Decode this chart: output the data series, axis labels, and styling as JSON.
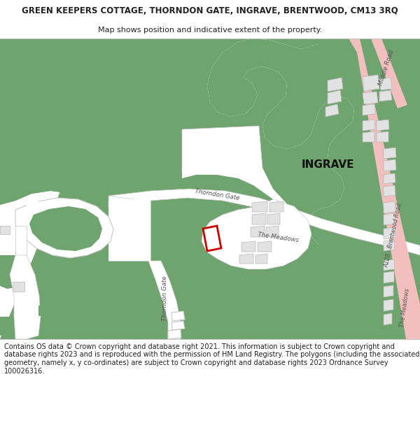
{
  "title_line1": "GREEN KEEPERS COTTAGE, THORNDON GATE, INGRAVE, BRENTWOOD, CM13 3RQ",
  "title_line2": "Map shows position and indicative extent of the property.",
  "footer": "Contains OS data © Crown copyright and database right 2021. This information is subject to Crown copyright and database rights 2023 and is reproduced with the permission of HM Land Registry. The polygons (including the associated geometry, namely x, y co-ordinates) are subject to Crown copyright and database rights 2023 Ordnance Survey 100026316.",
  "background_color": "#ffffff",
  "green_color": "#6fa46f",
  "white": "#ffffff",
  "dgray": "#c8c8c8",
  "pink": "#f2bebe",
  "building_color": "#e2e2e2",
  "building_stroke": "#b8b8b8",
  "plot_stroke": "#cc0000",
  "text_color": "#222222",
  "road_text_color": "#555555",
  "figsize": [
    6.0,
    6.25
  ],
  "dpi": 100,
  "title_fontsize": 8.5,
  "subtitle_fontsize": 8.0,
  "footer_fontsize": 7.0,
  "ingrave_fontsize": 11.0,
  "road_label_fontsize": 6.2
}
